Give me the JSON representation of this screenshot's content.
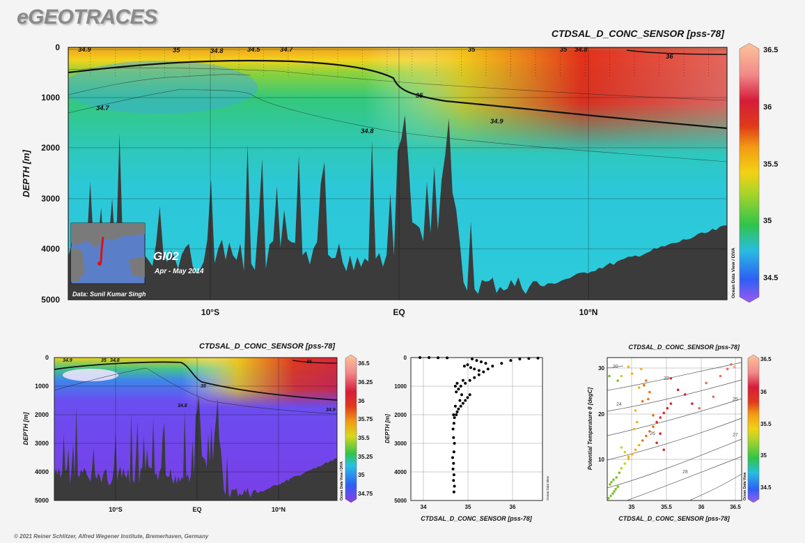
{
  "logo": "eGEOTRACES",
  "copyright": "© 2021 Reiner Schlitzer, Alfred Wegener Institute, Bremerhaven, Germany",
  "colors": {
    "land": "#3b3b3b",
    "contour": "#111111",
    "background": "#f4f4f4"
  },
  "icons": {
    "inset_map": "indian-ocean-map-icon"
  },
  "main_section": {
    "title": "CTDSAL_D_CONC_SENSOR [pss-78]",
    "ylabel": "DEPTH [m]",
    "y_ticks": [
      "0",
      "1000",
      "2000",
      "3000",
      "4000",
      "5000"
    ],
    "x_ticks": [
      "10°S",
      "EQ",
      "10°N"
    ],
    "contour_labels": [
      "34.9",
      "35",
      "34.8",
      "34.5",
      "34.7",
      "35",
      "35",
      "34.8",
      "36",
      "35",
      "34.7",
      "34.8",
      "34.9"
    ],
    "cruise": "GI02",
    "dates": "Apr - May 2014",
    "data_credit": "Data: Sunil Kumar Singh",
    "colorbar": {
      "ticks": [
        "36.5",
        "36",
        "35.5",
        "35",
        "34.5"
      ],
      "credit": "Ocean Data View / DIVA"
    }
  },
  "bottom_section": {
    "title": "CTDSAL_D_CONC_SENSOR [pss-78]",
    "ylabel": "DEPTH [m]",
    "y_ticks": [
      "0",
      "1000",
      "2000",
      "3000",
      "4000",
      "5000"
    ],
    "x_ticks": [
      "10°S",
      "EQ",
      "10°N"
    ],
    "contour_labels": [
      "34.9",
      "35",
      "34.8",
      "36",
      "35",
      "34.8",
      "34.9"
    ],
    "colorbar": {
      "ticks": [
        "36.5",
        "36.25",
        "36",
        "35.75",
        "35.5",
        "35.25",
        "35",
        "34.75"
      ],
      "credit": "Ocean Data View / DIVA"
    }
  },
  "profile_plot": {
    "xlabel": "CTDSAL_D_CONC_SENSOR [pss-78]",
    "ylabel": "DEPTH [m]",
    "credit": "Ocean Data View",
    "x_ticks": [
      "34",
      "35",
      "36"
    ],
    "y_ticks": [
      "0",
      "1000",
      "2000",
      "3000",
      "4000",
      "5000"
    ]
  },
  "ts_plot": {
    "title": "CTDSAL_D_CONC_SENSOR [pss-78]",
    "xlabel": "CTDSAL_D_CONC_SENSOR [pss-78]",
    "ylabel": "Potential Temperature θ [degC]",
    "x_ticks": [
      "35",
      "35.5",
      "36",
      "36.5"
    ],
    "y_ticks": [
      "30",
      "20",
      "10"
    ],
    "isopycnal_labels": [
      "20",
      "23",
      "24",
      "25",
      "26",
      "27",
      "28"
    ],
    "colorbar": {
      "ticks": [
        "36.5",
        "36",
        "35.5",
        "35",
        "34.5"
      ],
      "credit": "Ocean Data View"
    }
  },
  "chart_data": [
    {
      "type": "heatmap",
      "title": "CTDSAL_D_CONC_SENSOR [pss-78]",
      "ylabel": "DEPTH [m]",
      "x_ticks": [
        "10°S",
        "EQ",
        "10°N"
      ],
      "ylim": [
        5000,
        0
      ],
      "colorbar_range": [
        34.3,
        36.5
      ],
      "contour_levels": [
        34.5,
        34.7,
        34.8,
        34.9,
        35,
        36
      ]
    },
    {
      "type": "heatmap",
      "title": "CTDSAL_D_CONC_SENSOR [pss-78]",
      "ylabel": "DEPTH [m]",
      "x_ticks": [
        "10°S",
        "EQ",
        "10°N"
      ],
      "ylim": [
        5000,
        0
      ],
      "colorbar_range": [
        34.7,
        36.5
      ],
      "contour_levels": [
        34.8,
        34.9,
        35,
        36
      ]
    },
    {
      "type": "scatter",
      "xlabel": "CTDSAL_D_CONC_SENSOR [pss-78]",
      "ylabel": "DEPTH [m]",
      "xlim": [
        33.8,
        36.7
      ],
      "ylim": [
        5000,
        0
      ],
      "x": [
        34.75,
        34.76,
        34.74,
        34.75,
        34.73,
        34.74,
        34.72,
        34.75,
        34.76,
        34.74,
        34.73,
        34.75,
        34.76,
        34.74,
        34.8,
        34.82,
        34.85,
        34.78,
        34.9,
        34.95,
        34.88,
        35.0,
        35.05,
        34.92,
        35.1,
        34.8,
        34.85,
        34.78,
        34.9,
        34.82,
        35.0,
        34.95,
        35.1,
        35.2,
        35.3,
        35.4,
        35.5,
        35.6,
        35.8,
        36.0,
        36.2,
        36.4,
        36.6,
        34.6,
        34.4,
        34.2,
        34.0,
        35.15,
        35.25,
        35.35,
        35.45,
        35.05,
        34.98,
        35.12,
        35.2,
        35.3
      ],
      "y": [
        4700,
        4500,
        4300,
        4100,
        3900,
        3700,
        3500,
        3300,
        3000,
        2800,
        2500,
        2300,
        2100,
        2000,
        2000,
        1900,
        1800,
        1700,
        1700,
        1600,
        1500,
        1500,
        1400,
        1300,
        1300,
        1200,
        1100,
        1000,
        1000,
        900,
        900,
        800,
        800,
        700,
        600,
        500,
        400,
        300,
        200,
        100,
        50,
        30,
        20,
        10,
        5,
        0,
        0,
        50,
        100,
        150,
        200,
        250,
        300,
        350,
        400,
        450
      ]
    },
    {
      "type": "scatter",
      "xlabel": "CTDSAL_D_CONC_SENSOR [pss-78]",
      "ylabel": "Potential Temperature θ [degC]",
      "xlim": [
        34.7,
        36.6
      ],
      "ylim": [
        1,
        32
      ],
      "x": [
        34.72,
        34.75,
        34.78,
        34.8,
        34.82,
        34.85,
        34.74,
        34.76,
        34.79,
        34.83,
        34.87,
        34.9,
        34.95,
        35.0,
        35.05,
        35.1,
        35.15,
        35.2,
        35.25,
        35.3,
        35.35,
        35.4,
        35.45,
        35.5,
        35.55,
        35.6,
        35.1,
        35.2,
        35.3,
        35.15,
        35.25,
        35.05,
        35.18,
        35.22,
        35.28,
        35.35,
        35.45,
        35.12,
        35.08,
        34.9,
        34.95,
        35.0,
        35.8,
        35.9,
        36.1,
        36.3,
        36.4,
        36.5,
        35.6,
        35.7,
        36.0,
        36.2,
        36.45,
        35.4,
        35.5,
        34.85,
        34.9,
        35.0,
        34.73
      ],
      "y": [
        1.5,
        2.0,
        2.5,
        3.0,
        3.5,
        4.0,
        4.5,
        5.0,
        5.5,
        6.0,
        7.0,
        8.0,
        9.0,
        10.0,
        11.0,
        12.0,
        13.0,
        14.0,
        15.0,
        16.0,
        17.0,
        18.0,
        19.0,
        20.0,
        21.0,
        22.0,
        20.5,
        22.5,
        24.5,
        25.5,
        27.0,
        28.5,
        29.5,
        26.0,
        23.0,
        19.5,
        15.5,
        18.0,
        16.5,
        12.5,
        11.5,
        10.5,
        24.0,
        22.0,
        26.5,
        28.0,
        29.5,
        30.0,
        27.5,
        25.0,
        21.0,
        23.5,
        30.5,
        13.5,
        12.0,
        27.0,
        28.0,
        30.0,
        28.0
      ]
    }
  ]
}
